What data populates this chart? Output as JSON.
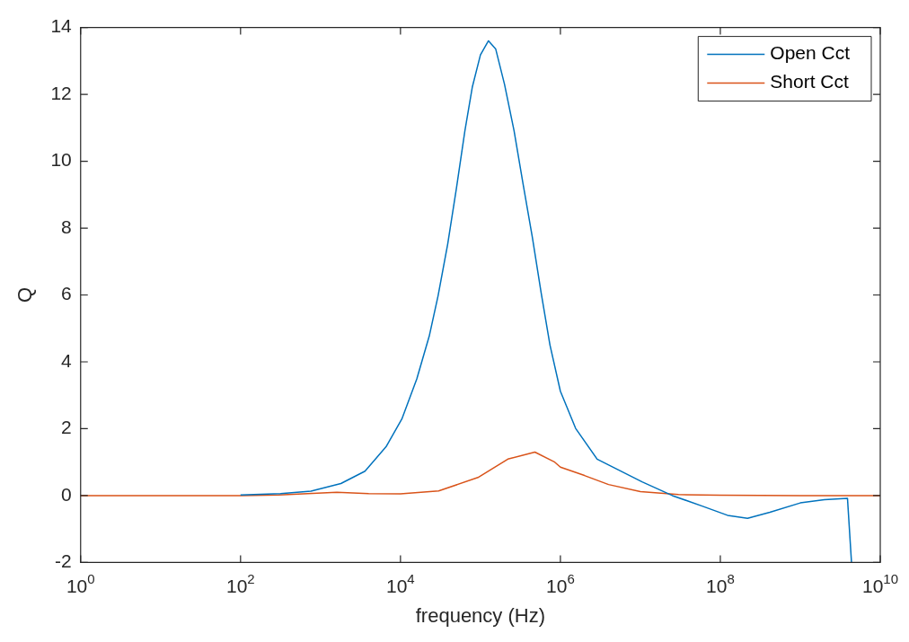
{
  "chart_data": {
    "type": "line",
    "xlabel": "frequency (Hz)",
    "ylabel": "Q",
    "log": "x",
    "grid": false,
    "marker": "none",
    "legend": "top right",
    "xlim": [
      1,
      10000000000.0
    ],
    "xticks": [
      {
        "value": 1,
        "label": "10$^{0}$"
      },
      {
        "value": 100,
        "label": "10$^{2}$"
      },
      {
        "value": 10000,
        "label": "10$^{4}$"
      },
      {
        "value": 1000000,
        "label": "10$^{6}$"
      },
      {
        "value": 100000000,
        "label": "10$^{8}$"
      },
      {
        "value": 10000000000,
        "label": "10$^{10}$"
      }
    ],
    "ylim": [
      -2,
      14
    ],
    "yticks": [
      -2,
      0,
      2,
      4,
      6,
      8,
      10,
      12,
      14
    ],
    "series": [
      {
        "name": "Open Cct",
        "color": "#0072bd",
        "x": [
          100,
          316,
          760,
          1800,
          3600,
          6600,
          10400,
          16000,
          22900,
          29500,
          39000,
          50000,
          64000,
          79000,
          100000,
          126000,
          155000,
          200000,
          263000,
          339000,
          447000,
          575000,
          741000,
          1000000,
          1550000,
          2880000,
          10500000,
          25100000,
          60300000,
          123000000,
          219000000,
          417000000,
          1000000000,
          2000000000,
          3890000000,
          4370000000
        ],
        "values": [
          0.02,
          0.06,
          0.13,
          0.36,
          0.73,
          1.46,
          2.29,
          3.49,
          4.77,
          5.97,
          7.53,
          9.18,
          10.92,
          12.21,
          13.18,
          13.6,
          13.36,
          12.3,
          10.92,
          9.36,
          7.71,
          6.06,
          4.5,
          3.12,
          2.01,
          1.09,
          0.41,
          0,
          -0.32,
          -0.59,
          -0.68,
          -0.5,
          -0.22,
          -0.12,
          -0.08,
          -2
        ]
      },
      {
        "name": "Short Cct",
        "color": "#d95319",
        "x": [
          1,
          10,
          100,
          300,
          1600,
          4000,
          10000,
          30000,
          93000,
          220000,
          480000,
          850000,
          1000000,
          2000000,
          4000000,
          10000000,
          30000000,
          100000000,
          1000000000,
          10000000000
        ],
        "values": [
          0,
          0,
          0,
          0.02,
          0.1,
          0.06,
          0.05,
          0.14,
          0.54,
          1.09,
          1.3,
          1.0,
          0.85,
          0.6,
          0.33,
          0.12,
          0.03,
          0.01,
          0,
          0
        ]
      }
    ]
  }
}
